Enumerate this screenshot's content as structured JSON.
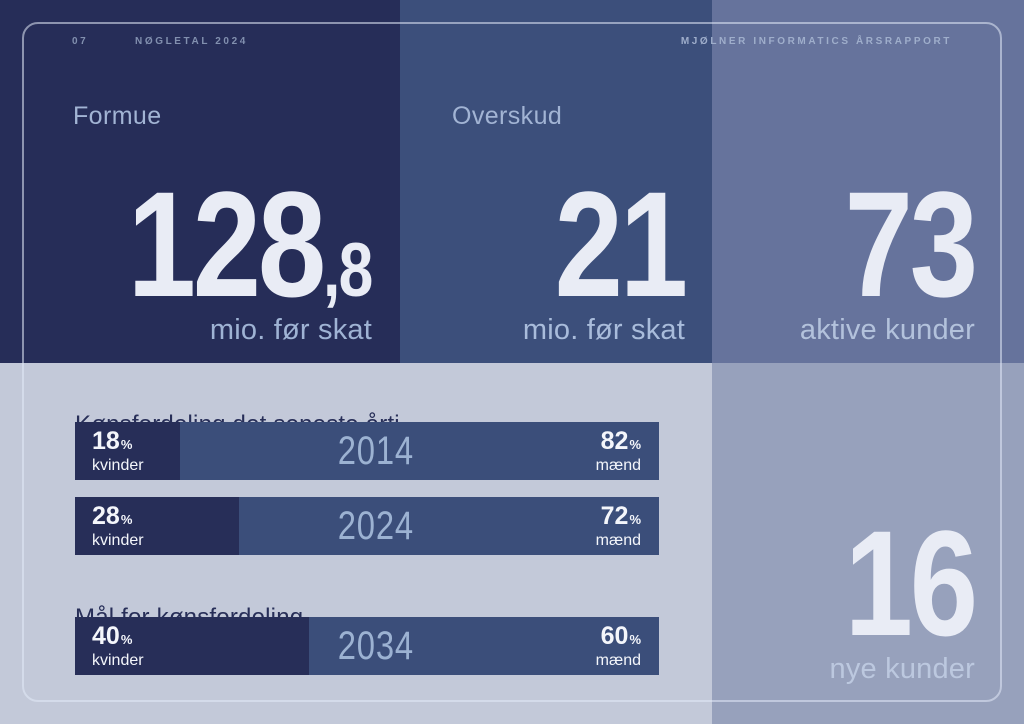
{
  "header": {
    "page_number": "07",
    "section_title": "NØGLETAL 2024",
    "report_title": "MJØLNER INFORMATICS ÅRSRAPPORT"
  },
  "stats": {
    "formue": {
      "label": "Formue",
      "value": "128",
      "decimal": ",8",
      "caption": "mio. før skat"
    },
    "overskud": {
      "label": "Overskud",
      "value": "21",
      "caption": "mio. før skat"
    },
    "aktive_kunder": {
      "value": "73",
      "caption": "aktive kunder"
    },
    "nye_kunder": {
      "value": "16",
      "caption": "nye kunder"
    }
  },
  "chart_data": {
    "type": "bar",
    "variant": "horizontal-stacked-100pct",
    "title": "Kønsfordeling det seneste årti",
    "goal_title": "Mål for kønsfordeling",
    "women_label": "kvinder",
    "men_label": "mænd",
    "unit": "%",
    "categories": [
      "2014",
      "2024",
      "2034"
    ],
    "rows": [
      {
        "year": "2014",
        "women_pct": 18,
        "men_pct": 82,
        "group": "historic"
      },
      {
        "year": "2024",
        "women_pct": 28,
        "men_pct": 72,
        "group": "historic"
      },
      {
        "year": "2034",
        "women_pct": 40,
        "men_pct": 60,
        "group": "goal"
      }
    ]
  },
  "colors": {
    "navy": "#262d58",
    "blue": "#3c4f7b",
    "slate": "#66739c",
    "grayblue": "#97a1bc",
    "lavender": "#c3c9d9",
    "bar-blue": "#3b4e7a",
    "bar-dark": "#272e58",
    "frame-line": "rgba(226,234,247,0.55)",
    "num-light": "#e9ecf5",
    "label-light": "#a2b4d4",
    "caption-navy": "#9fb3d4",
    "caption-blue": "#a9bcdb",
    "caption-slate": "#b3c2dc",
    "caption-gray": "#bcc8df",
    "meta-dark-panel": "#8290af",
    "meta-light-panel": "#9faecb",
    "ink": "#272e58",
    "year-text": "#9cb2d2",
    "white-text": "#f4f6fb"
  }
}
